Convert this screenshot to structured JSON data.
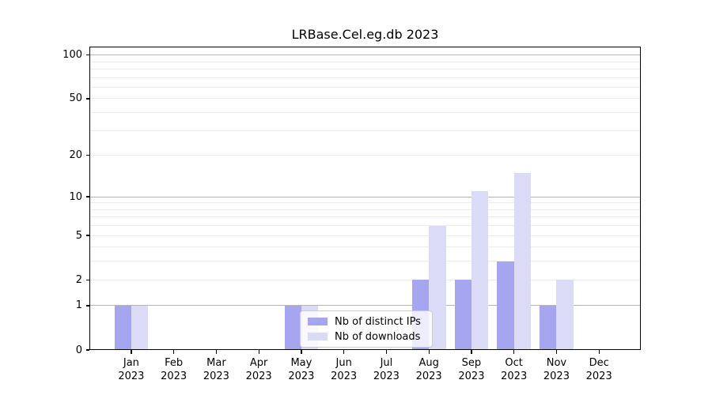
{
  "chart_data": {
    "type": "bar",
    "title": "LRBase.Cel.eg.db 2023",
    "categories": [
      "Jan",
      "Feb",
      "Mar",
      "Apr",
      "May",
      "Jun",
      "Jul",
      "Aug",
      "Sep",
      "Oct",
      "Nov",
      "Dec"
    ],
    "year": "2023",
    "series": [
      {
        "name": "Nb of distinct IPs",
        "color": "#a5a5f0",
        "values": [
          1,
          0,
          0,
          0,
          1,
          0,
          0,
          2,
          2,
          3,
          1,
          0
        ]
      },
      {
        "name": "Nb of downloads",
        "color": "#dbdbf8",
        "values": [
          1,
          0,
          0,
          0,
          1,
          0,
          0,
          6,
          11,
          15,
          2,
          0
        ]
      }
    ],
    "xlabel": "",
    "ylabel": "",
    "y_scale": "log10(1+x)",
    "y_axis_max": 114.3,
    "y_ticks": [
      0,
      1,
      2,
      5,
      10,
      20,
      50,
      100
    ],
    "y_gridlines_major": [
      1,
      10,
      100
    ],
    "y_gridlines_minor": [
      2,
      3,
      4,
      5,
      6,
      7,
      8,
      9,
      20,
      30,
      40,
      50,
      60,
      70,
      80,
      90
    ],
    "legend": {
      "position": "lower center",
      "entries": [
        "Nb of distinct IPs",
        "Nb of downloads"
      ]
    },
    "grid": true
  }
}
